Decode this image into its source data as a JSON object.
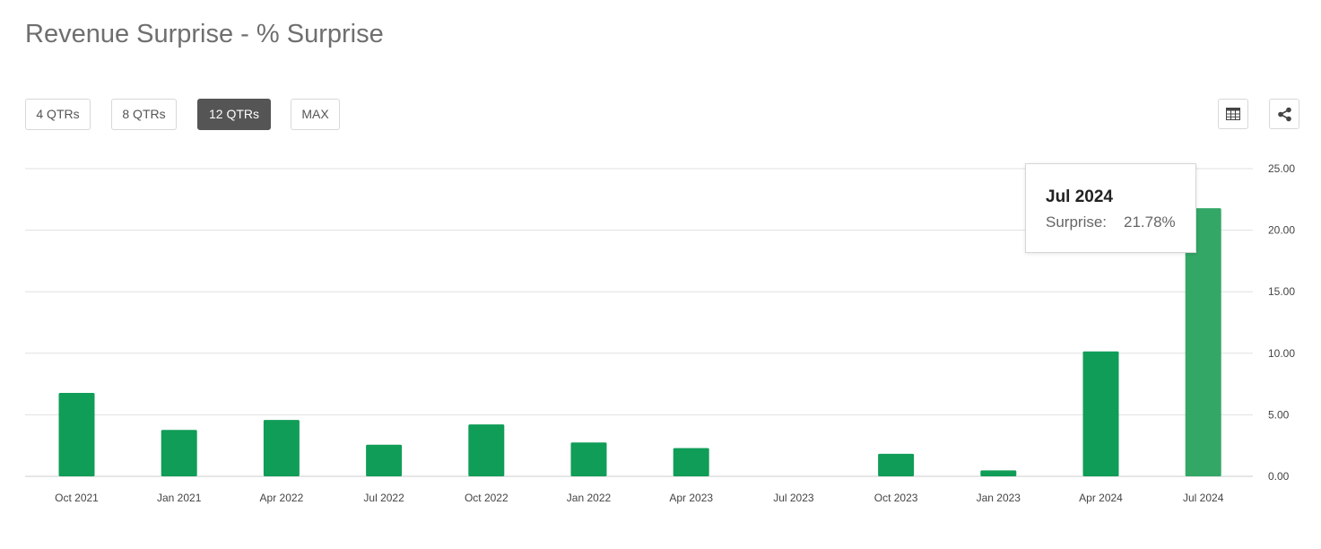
{
  "page": {
    "title": "Revenue Surprise - % Surprise"
  },
  "range_tabs": [
    {
      "label": "4 QTRs",
      "active": false
    },
    {
      "label": "8 QTRs",
      "active": false
    },
    {
      "label": "12 QTRs",
      "active": true
    },
    {
      "label": "MAX",
      "active": false
    }
  ],
  "toolbar": {
    "table_icon": "table-icon",
    "share_icon": "share-icon"
  },
  "tooltip": {
    "title": "Jul 2024",
    "label": "Surprise:",
    "value": "21.78%"
  },
  "colors": {
    "bar": "#109d58",
    "bar_hover": "#32a766",
    "grid": "#e0e0e0",
    "axis_text": "#444444",
    "active_tab": "#555555"
  },
  "chart_data": {
    "type": "bar",
    "categories": [
      "Oct 2021",
      "Jan 2021",
      "Apr 2022",
      "Jul 2022",
      "Oct 2022",
      "Jan 2022",
      "Apr 2023",
      "Jul 2023",
      "Oct 2023",
      "Jan 2023",
      "Apr 2024",
      "Jul 2024"
    ],
    "values": [
      6.78,
      3.77,
      4.58,
      2.57,
      4.22,
      2.75,
      2.3,
      0,
      1.83,
      0.48,
      10.15,
      21.78
    ],
    "highlighted_category": "Jul 2024",
    "ylim": [
      0,
      25
    ],
    "yticks": [
      "0.00",
      "5.00",
      "10.00",
      "15.00",
      "20.00",
      "25.00"
    ],
    "y_axis_position": "right",
    "grid": true,
    "legend": "none"
  }
}
